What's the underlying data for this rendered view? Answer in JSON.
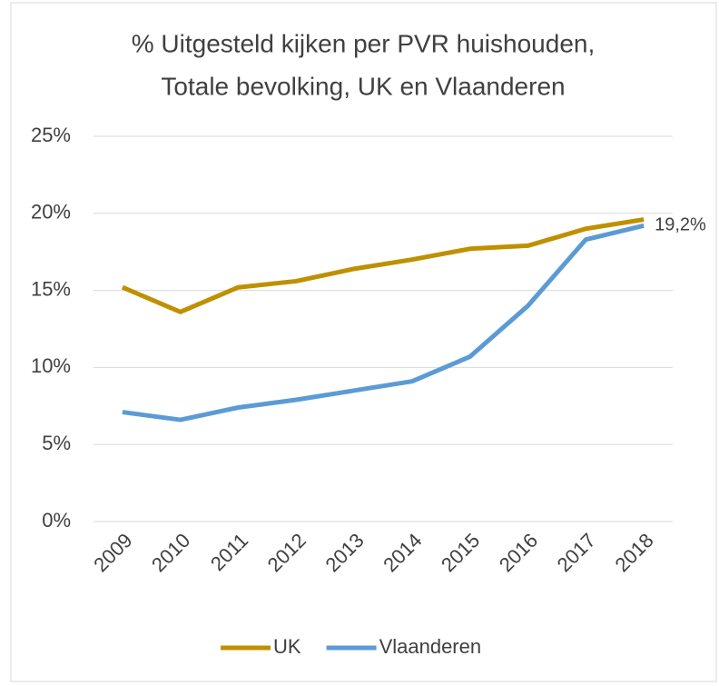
{
  "chart_data": {
    "type": "line",
    "title": [
      "% Uitgesteld kijken per PVR huishouden,",
      "Totale bevolking, UK en Vlaanderen"
    ],
    "categories": [
      "2009",
      "2010",
      "2011",
      "2012",
      "2013",
      "2014",
      "2015",
      "2016",
      "2017",
      "2018"
    ],
    "series": [
      {
        "name": "UK",
        "color": "#bf9000",
        "values": [
          15.2,
          13.6,
          15.2,
          15.6,
          16.4,
          17.0,
          17.7,
          17.9,
          19.0,
          19.6
        ]
      },
      {
        "name": "Vlaanderen",
        "color": "#5b9bd5",
        "values": [
          7.1,
          6.6,
          7.4,
          7.9,
          8.5,
          9.1,
          10.7,
          14.0,
          18.3,
          19.2
        ],
        "value_labels": [
          null,
          null,
          null,
          null,
          null,
          null,
          null,
          null,
          null,
          "19,2%"
        ]
      }
    ],
    "ylim": [
      0,
      25
    ],
    "yticks": [
      {
        "value": 0,
        "label": "0%"
      },
      {
        "value": 5,
        "label": "5%"
      },
      {
        "value": 10,
        "label": "10%"
      },
      {
        "value": 15,
        "label": "15%"
      },
      {
        "value": 20,
        "label": "20%"
      },
      {
        "value": 25,
        "label": "25%"
      }
    ],
    "grid": true,
    "legend": "bottom"
  }
}
